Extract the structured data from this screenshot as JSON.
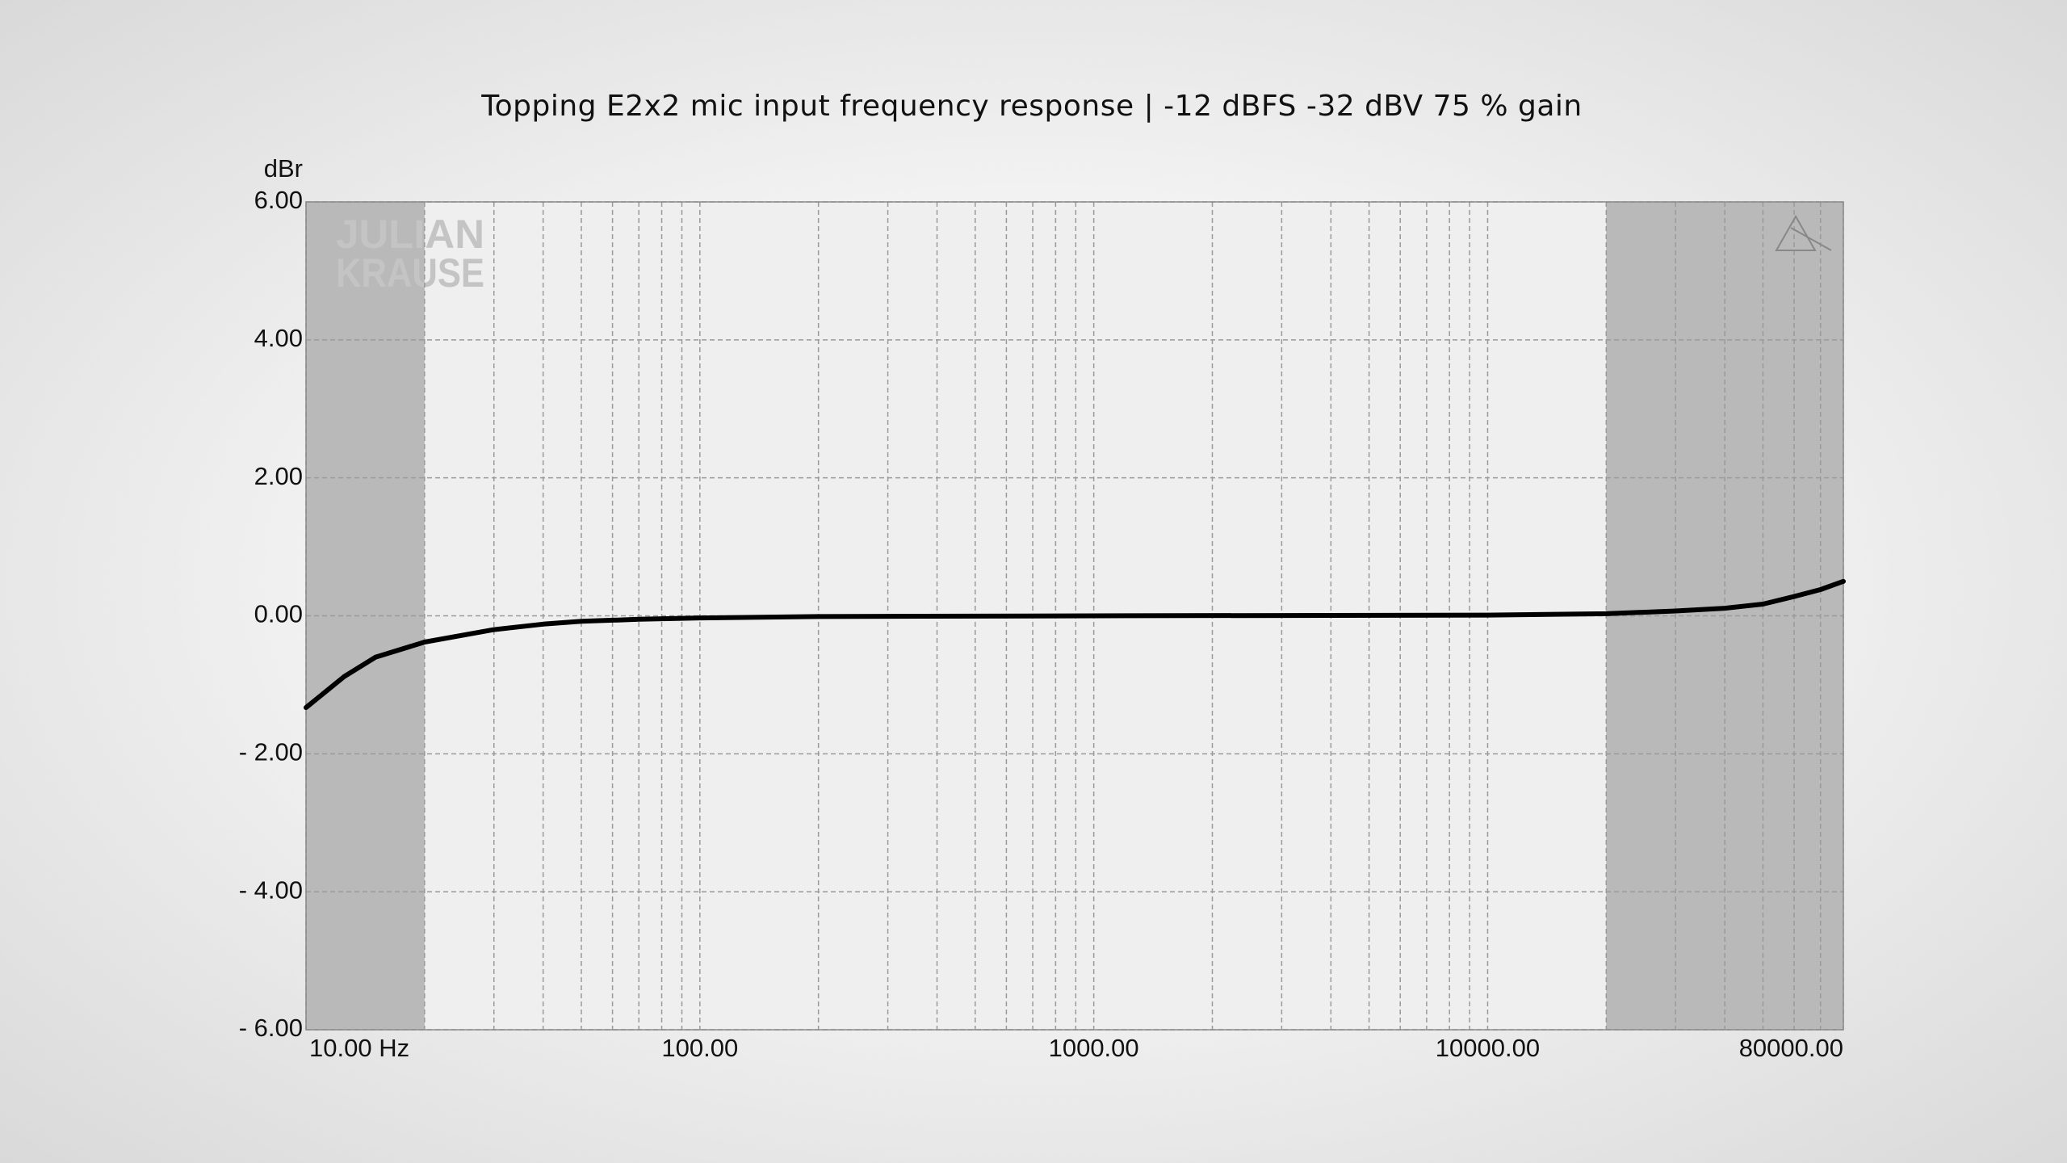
{
  "chart_data": {
    "type": "line",
    "title": "Topping E2x2 mic input frequency response | -12 dBFS -32 dBV 75 % gain",
    "y_label": "dBr",
    "watermark": [
      "JULIAN",
      "KRAUSE"
    ],
    "x_scale": "log",
    "xlim": [
      10,
      80000
    ],
    "xticks": [
      {
        "value": 10,
        "label": "10.00 Hz"
      },
      {
        "value": 100,
        "label": "100.00"
      },
      {
        "value": 1000,
        "label": "1000.00"
      },
      {
        "value": 10000,
        "label": "10000.00"
      },
      {
        "value": 80000,
        "label": "80000.00"
      }
    ],
    "xminor_ticks": [
      20,
      30,
      40,
      50,
      60,
      70,
      80,
      90,
      200,
      300,
      400,
      500,
      600,
      700,
      800,
      900,
      2000,
      3000,
      4000,
      5000,
      6000,
      7000,
      8000,
      9000,
      20000,
      30000,
      40000,
      50000,
      60000,
      70000
    ],
    "ylim": [
      -6,
      6
    ],
    "yticks": [
      {
        "value": -6,
        "label": "- 6.00"
      },
      {
        "value": -4,
        "label": "- 4.00"
      },
      {
        "value": -2,
        "label": "- 2.00"
      },
      {
        "value": 0,
        "label": "0.00"
      },
      {
        "value": 2,
        "label": "2.00"
      },
      {
        "value": 4,
        "label": "4.00"
      },
      {
        "value": 6,
        "label": "6.00"
      }
    ],
    "grid": true,
    "shaded_ranges": [
      [
        10,
        20
      ],
      [
        20000,
        80000
      ]
    ],
    "shade_color": "#b9b9b9",
    "color": "#000000",
    "x": [
      10,
      12.5,
      15,
      20,
      30,
      40,
      50,
      70,
      100,
      200,
      1000,
      10000,
      20000,
      30000,
      40000,
      50000,
      60000,
      70000,
      80000
    ],
    "values": [
      -1.33,
      -0.88,
      -0.6,
      -0.38,
      -0.2,
      -0.12,
      -0.08,
      -0.05,
      -0.03,
      -0.01,
      0,
      0.01,
      0.03,
      0.07,
      0.11,
      0.17,
      0.28,
      0.38,
      0.5
    ]
  }
}
